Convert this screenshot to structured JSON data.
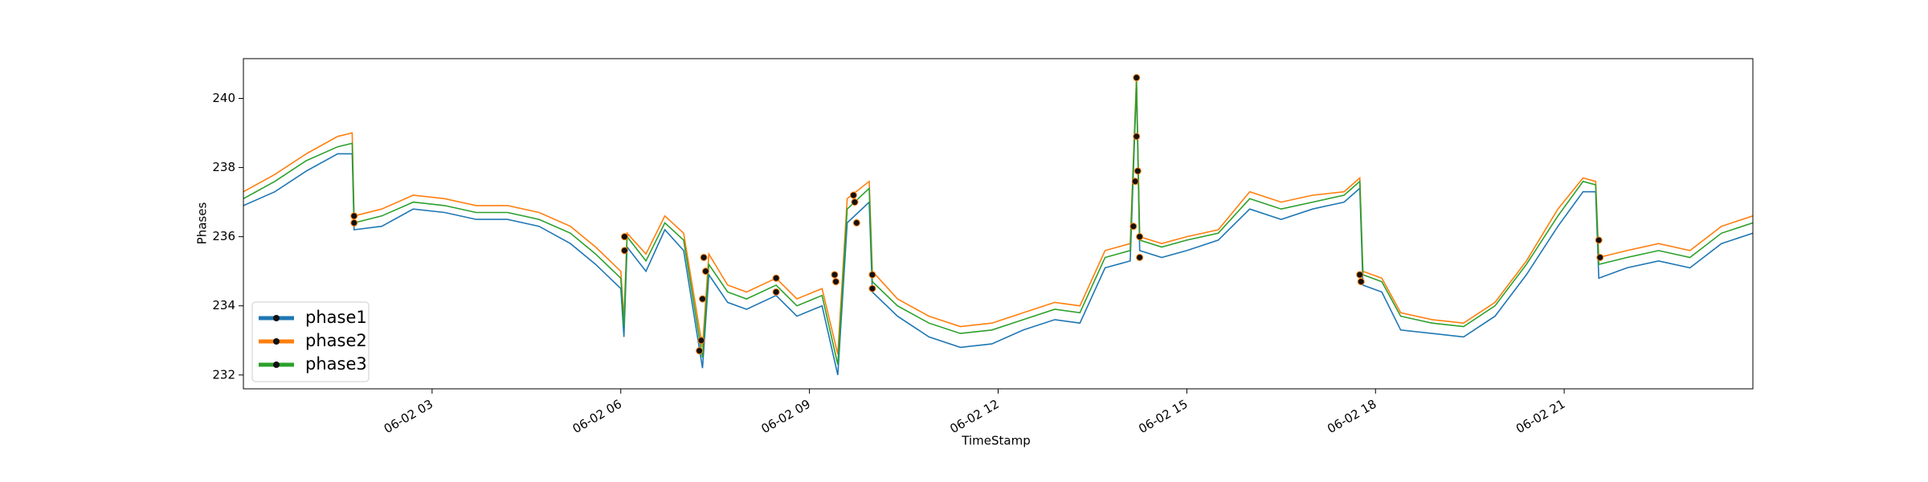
{
  "chart_data": {
    "type": "line",
    "xlabel": "TimeStamp",
    "ylabel": "Phases",
    "x": [
      0,
      0.5,
      1,
      1.5,
      1.73,
      1.76,
      2.2,
      2.7,
      3.2,
      3.7,
      4.2,
      4.7,
      5.2,
      5.6,
      6.0,
      6.05,
      6.1,
      6.4,
      6.7,
      7.0,
      7.3,
      7.4,
      7.7,
      8.0,
      8.47,
      8.8,
      9.2,
      9.45,
      9.6,
      9.95,
      10.0,
      10.4,
      10.9,
      11.4,
      11.9,
      12.4,
      12.9,
      13.3,
      13.7,
      14.1,
      14.2,
      14.25,
      14.6,
      15.0,
      15.5,
      16.0,
      16.5,
      17.0,
      17.5,
      17.75,
      17.8,
      18.1,
      18.4,
      18.9,
      19.4,
      19.9,
      20.4,
      20.9,
      21.3,
      21.5,
      21.55,
      22.0,
      22.5,
      23.0,
      23.5,
      24
    ],
    "series": [
      {
        "name": "phase1",
        "color": "#1f77b4",
        "values": [
          236.9,
          237.3,
          237.9,
          238.4,
          238.4,
          236.2,
          236.3,
          236.8,
          236.7,
          236.5,
          236.5,
          236.3,
          235.8,
          235.2,
          234.5,
          233.1,
          235.7,
          235.0,
          236.2,
          235.6,
          232.2,
          234.9,
          234.1,
          233.9,
          234.3,
          233.7,
          234.0,
          232.0,
          236.4,
          237.0,
          234.4,
          233.7,
          233.1,
          232.8,
          232.9,
          233.3,
          233.6,
          233.5,
          235.1,
          235.3,
          240.4,
          235.6,
          235.4,
          235.6,
          235.9,
          236.8,
          236.5,
          236.8,
          237.0,
          237.4,
          234.6,
          234.4,
          233.3,
          233.2,
          233.1,
          233.7,
          234.9,
          236.3,
          237.3,
          237.3,
          234.8,
          235.1,
          235.3,
          235.1,
          235.8,
          236.1
        ]
      },
      {
        "name": "phase2",
        "color": "#ff7f0e",
        "values": [
          237.3,
          237.8,
          238.4,
          238.9,
          239.0,
          236.6,
          236.8,
          237.2,
          237.1,
          236.9,
          236.9,
          236.7,
          236.3,
          235.7,
          235.0,
          233.6,
          236.1,
          235.5,
          236.6,
          236.1,
          232.8,
          235.5,
          234.6,
          234.4,
          234.8,
          234.2,
          234.5,
          232.6,
          237.1,
          237.6,
          235.0,
          234.2,
          233.7,
          233.4,
          233.5,
          233.8,
          234.1,
          234.0,
          235.6,
          235.8,
          240.6,
          236.0,
          235.8,
          236.0,
          236.2,
          237.3,
          237.0,
          237.2,
          237.3,
          237.7,
          235.0,
          234.8,
          233.8,
          233.6,
          233.5,
          234.1,
          235.3,
          236.8,
          237.7,
          237.6,
          235.4,
          235.6,
          235.8,
          235.6,
          236.3,
          236.6
        ]
      },
      {
        "name": "phase3",
        "color": "#2ca02c",
        "values": [
          237.1,
          237.6,
          238.2,
          238.6,
          238.7,
          236.4,
          236.6,
          237.0,
          236.9,
          236.7,
          236.7,
          236.5,
          236.1,
          235.5,
          234.8,
          233.4,
          236.0,
          235.3,
          236.4,
          235.9,
          232.5,
          235.2,
          234.4,
          234.2,
          234.6,
          234.0,
          234.3,
          232.3,
          236.8,
          237.4,
          234.7,
          234.0,
          233.5,
          233.2,
          233.3,
          233.6,
          233.9,
          233.8,
          235.4,
          235.6,
          240.5,
          235.9,
          235.7,
          235.9,
          236.1,
          237.1,
          236.8,
          237.0,
          237.2,
          237.6,
          234.9,
          234.7,
          233.7,
          233.5,
          233.4,
          234.0,
          235.2,
          236.6,
          237.6,
          237.5,
          235.2,
          235.4,
          235.6,
          235.4,
          236.1,
          236.4
        ]
      }
    ],
    "markers": {
      "x": [
        1.76,
        1.76,
        6.06,
        6.06,
        7.25,
        7.28,
        7.3,
        7.32,
        7.35,
        8.47,
        8.47,
        9.4,
        9.42,
        9.7,
        9.72,
        9.75,
        10.0,
        10.0,
        14.15,
        14.18,
        14.2,
        14.2,
        14.22,
        14.25,
        14.25,
        17.75,
        17.77,
        21.55,
        21.57
      ],
      "y": [
        236.6,
        236.4,
        236.0,
        235.6,
        232.7,
        233.0,
        234.2,
        235.4,
        235.0,
        234.8,
        234.4,
        234.9,
        234.7,
        237.2,
        237.0,
        236.4,
        234.9,
        234.5,
        236.3,
        237.6,
        240.6,
        238.9,
        237.9,
        236.0,
        235.4,
        234.9,
        234.7,
        235.9,
        235.4
      ]
    },
    "xlim": [
      0,
      24
    ],
    "ylim": [
      231.6,
      241.15
    ],
    "xticks": [
      {
        "value": 3,
        "label": "06-02 03"
      },
      {
        "value": 6,
        "label": "06-02 06"
      },
      {
        "value": 9,
        "label": "06-02 09"
      },
      {
        "value": 12,
        "label": "06-02 12"
      },
      {
        "value": 15,
        "label": "06-02 15"
      },
      {
        "value": 18,
        "label": "06-02 18"
      },
      {
        "value": 21,
        "label": "06-02 21"
      }
    ],
    "yticks": [
      232,
      234,
      236,
      238,
      240
    ],
    "legend": "lower left"
  }
}
